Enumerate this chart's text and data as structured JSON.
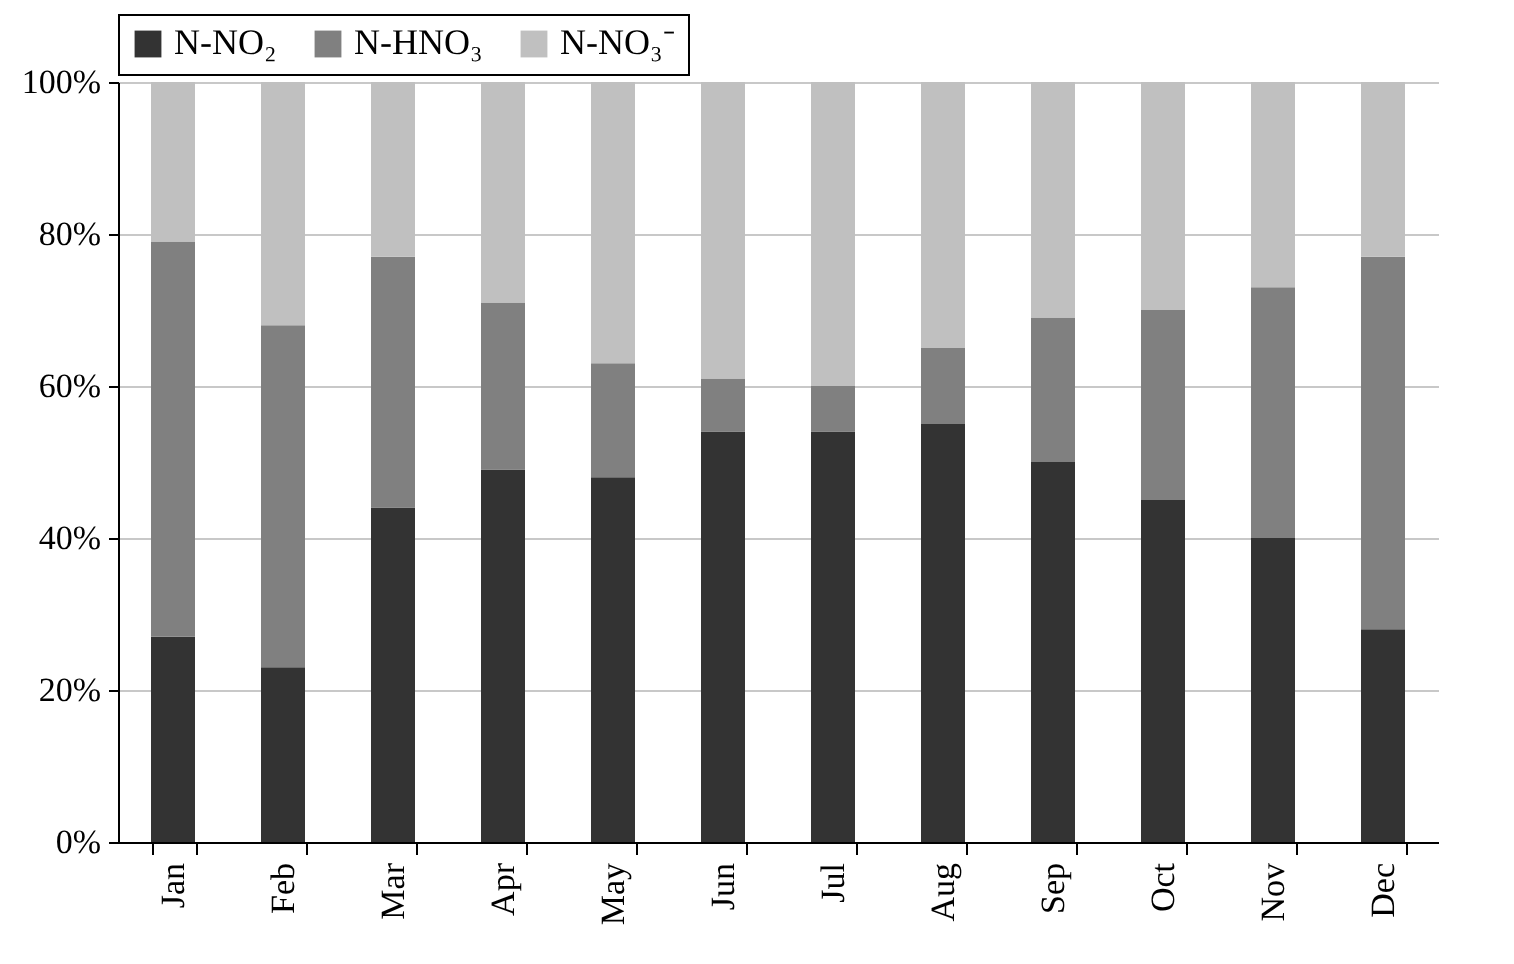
{
  "chart_data": {
    "type": "bar",
    "stacked": true,
    "categories": [
      "Jan",
      "Feb",
      "Mar",
      "Apr",
      "May",
      "Jun",
      "Jul",
      "Aug",
      "Sep",
      "Oct",
      "Nov",
      "Dec"
    ],
    "series": [
      {
        "name": "N-NO₂",
        "color": "#333333",
        "values": [
          27,
          23,
          44,
          49,
          48,
          54,
          54,
          55,
          50,
          45,
          40,
          28
        ]
      },
      {
        "name": "N-HNO₃",
        "color": "#808080",
        "values": [
          52,
          45,
          33,
          22,
          15,
          7,
          6,
          10,
          19,
          25,
          33,
          49
        ]
      },
      {
        "name": "N-NO₃⁻",
        "color": "#c0c0c0",
        "values": [
          21,
          32,
          23,
          29,
          37,
          39,
          40,
          35,
          31,
          30,
          27,
          23
        ]
      }
    ],
    "ylim": [
      0,
      100
    ],
    "yticks": [
      {
        "value": 0,
        "label": "0%"
      },
      {
        "value": 20,
        "label": "20%"
      },
      {
        "value": 40,
        "label": "40%"
      },
      {
        "value": 60,
        "label": "60%"
      },
      {
        "value": 80,
        "label": "80%"
      },
      {
        "value": 100,
        "label": "100%"
      }
    ],
    "grid": "y",
    "legend": "top"
  }
}
